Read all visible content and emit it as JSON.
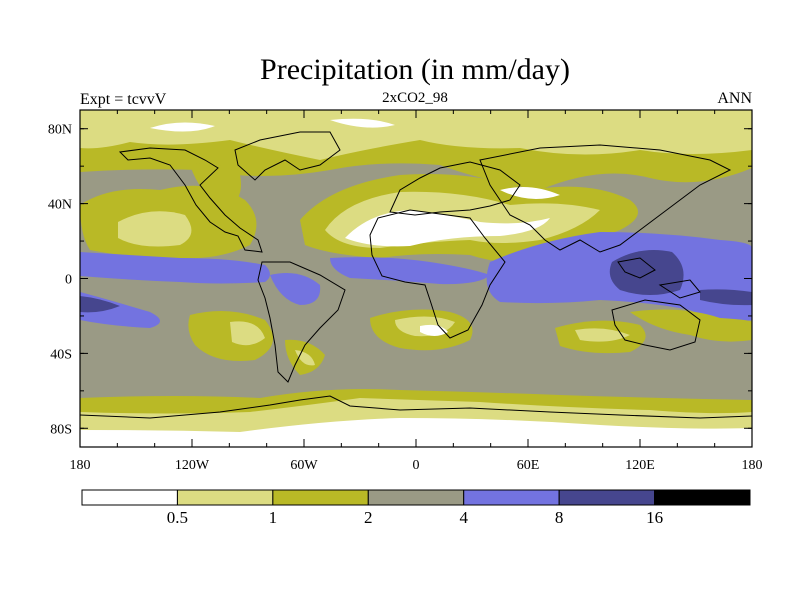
{
  "title": "Precipitation (in mm/day)",
  "subtitle": "2xCO2_98",
  "left_label": "Expt = tcvvV",
  "right_label": "ANN",
  "y_ticks": [
    {
      "lat": 80,
      "label": "80N"
    },
    {
      "lat": 40,
      "label": "40N"
    },
    {
      "lat": 0,
      "label": "0"
    },
    {
      "lat": -40,
      "label": "40S"
    },
    {
      "lat": -80,
      "label": "80S"
    }
  ],
  "x_ticks": [
    {
      "lon": -180,
      "label": "180"
    },
    {
      "lon": -120,
      "label": "120W"
    },
    {
      "lon": -60,
      "label": "60W"
    },
    {
      "lon": 0,
      "label": "0"
    },
    {
      "lon": 60,
      "label": "60E"
    },
    {
      "lon": 120,
      "label": "120E"
    },
    {
      "lon": 180,
      "label": "180"
    }
  ],
  "chart_data": {
    "type": "heatmap",
    "title": "Precipitation (in mm/day)",
    "subtitle": "2xCO2_98",
    "experiment": "Expt = tcvvV",
    "period": "ANN",
    "xlim": [
      -180,
      180
    ],
    "ylim": [
      -90,
      90
    ],
    "contour_levels": [
      0.5,
      1,
      2,
      4,
      8,
      16
    ],
    "colors": [
      "#ffffff",
      "#dcdc82",
      "#b9b926",
      "#9a9a85",
      "#7373e0",
      "#46468e",
      "#000000"
    ],
    "colorbar_labels": [
      "0.5",
      "1",
      "2",
      "4",
      "8",
      "16"
    ]
  }
}
